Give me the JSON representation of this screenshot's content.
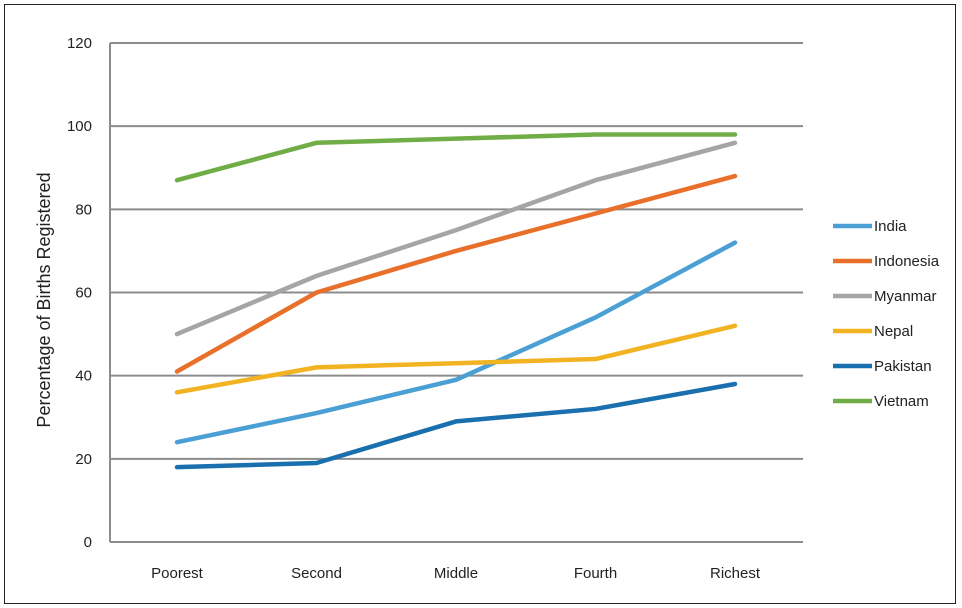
{
  "chart_data": {
    "type": "line",
    "title": "",
    "xlabel": "",
    "ylabel": "Percentage of Births Registered",
    "categories": [
      "Poorest",
      "Second",
      "Middle",
      "Fourth",
      "Richest"
    ],
    "ylim": [
      0,
      120
    ],
    "yticks": [
      0,
      20,
      40,
      60,
      80,
      100,
      120
    ],
    "grid": true,
    "legend_position": "right",
    "series": [
      {
        "name": "India",
        "color": "#4a9fd4",
        "values": [
          24,
          31,
          39,
          54,
          72
        ]
      },
      {
        "name": "Indonesia",
        "color": "#e8702a",
        "values": [
          41,
          60,
          70,
          79,
          88
        ]
      },
      {
        "name": "Myanmar",
        "color": "#a5a5a5",
        "values": [
          50,
          64,
          75,
          87,
          96
        ]
      },
      {
        "name": "Nepal",
        "color": "#f2b323",
        "values": [
          36,
          42,
          43,
          44,
          52
        ]
      },
      {
        "name": "Pakistan",
        "color": "#1a6fae",
        "values": [
          18,
          19,
          29,
          32,
          38
        ]
      },
      {
        "name": "Vietnam",
        "color": "#70ad47",
        "values": [
          87,
          96,
          97,
          98,
          98
        ]
      }
    ]
  }
}
